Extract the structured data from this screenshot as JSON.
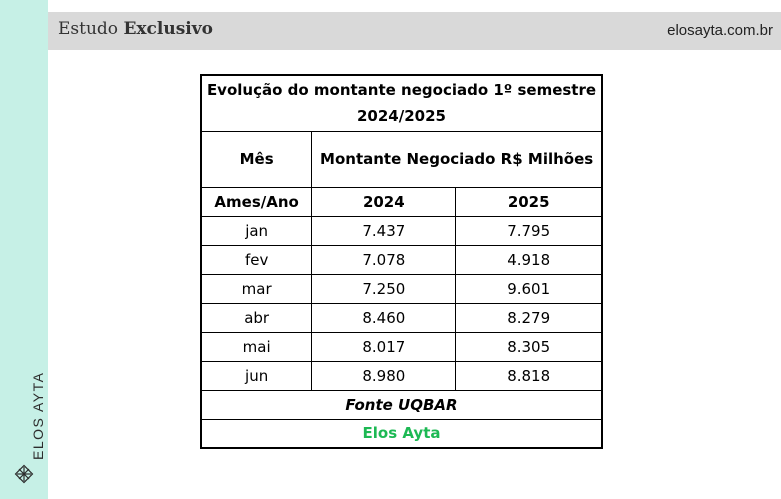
{
  "header": {
    "title_prefix": "Estudo",
    "title_bold": "Exclusivo",
    "site": "elosayta.com.br"
  },
  "sidebar": {
    "brand": "ELOS AYTA"
  },
  "table": {
    "title": "Evolução do montante negociado 1º semestre 2024/2025",
    "col_month_header": "Mês",
    "col_value_header": "Montante Negociado R$ Milhões",
    "sub_month": "Ames/Ano",
    "sub_year1": "2024",
    "sub_year2": "2025",
    "rows": [
      {
        "month": "jan",
        "v2024": "7.437",
        "v2025": "7.795"
      },
      {
        "month": "fev",
        "v2024": "7.078",
        "v2025": "4.918"
      },
      {
        "month": "mar",
        "v2024": "7.250",
        "v2025": "9.601"
      },
      {
        "month": "abr",
        "v2024": "8.460",
        "v2025": "8.279"
      },
      {
        "month": "mai",
        "v2024": "8.017",
        "v2025": "8.305"
      },
      {
        "month": "jun",
        "v2024": "8.980",
        "v2025": "8.818"
      }
    ],
    "source": "Fonte UQBAR",
    "brand": "Elos Ayta"
  },
  "colors": {
    "side_strip": "#c6f0e6",
    "header_bg": "#d9d9d9",
    "brand_green": "#1db954"
  }
}
